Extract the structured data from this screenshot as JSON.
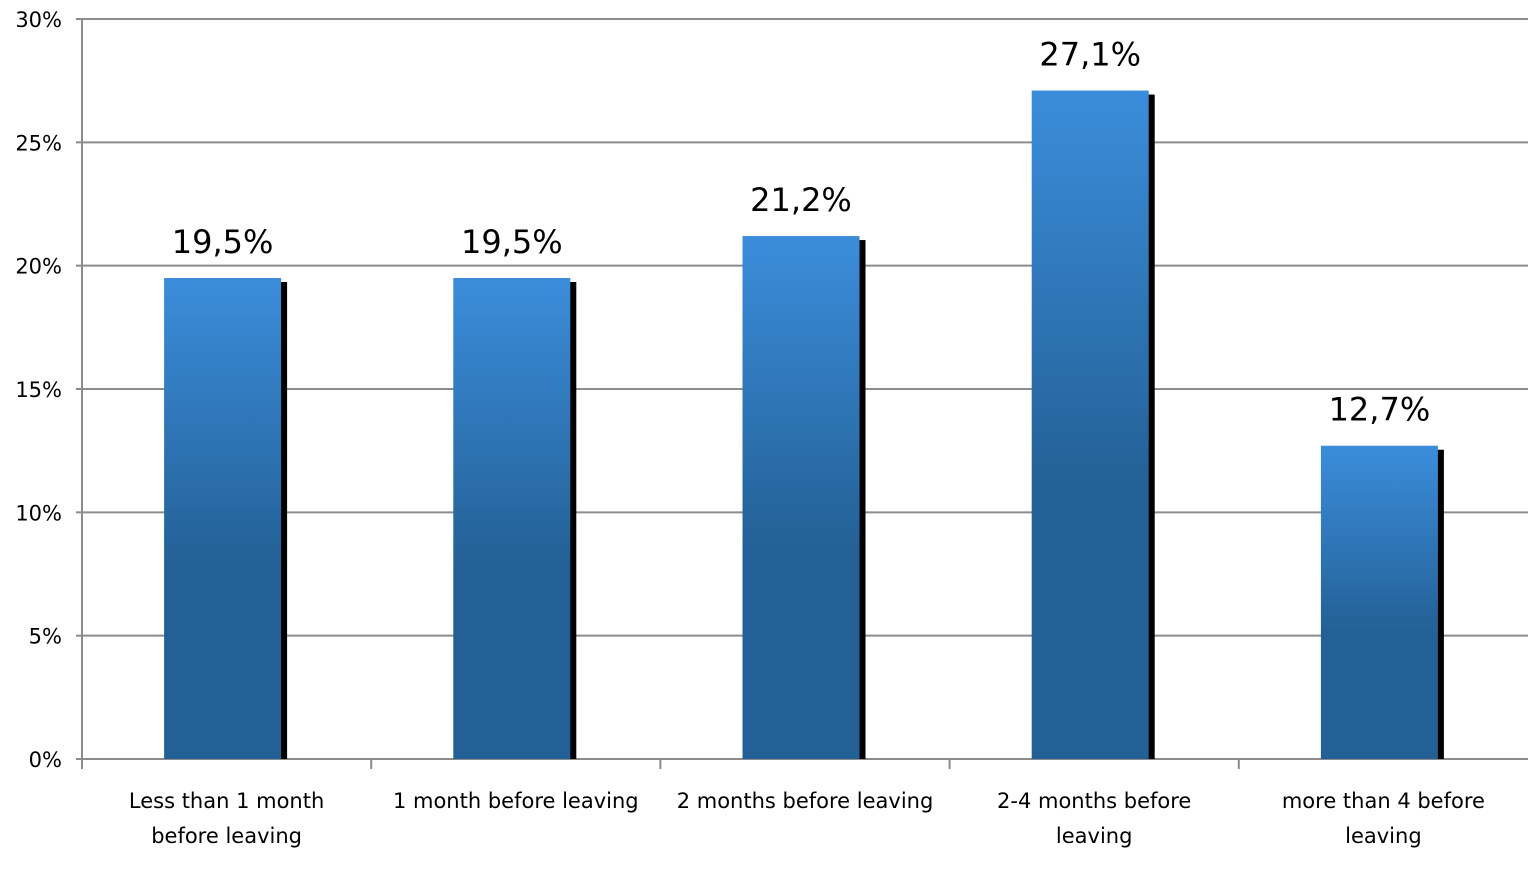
{
  "chart_data": {
    "type": "bar",
    "categories": [
      [
        "Less than 1 month",
        "before leaving"
      ],
      [
        "1 month before leaving"
      ],
      [
        "2 months before leaving"
      ],
      [
        "2-4 months before",
        "leaving"
      ],
      [
        "more than 4 before",
        "leaving"
      ]
    ],
    "values": [
      19.5,
      19.5,
      21.2,
      27.1,
      12.7
    ],
    "data_labels": [
      "19,5%",
      "19,5%",
      "21,2%",
      "27,1%",
      "12,7%"
    ],
    "title": "",
    "xlabel": "",
    "ylabel": "",
    "ylim": [
      0,
      30
    ],
    "yticks": [
      0,
      5,
      10,
      15,
      20,
      25,
      30
    ],
    "ytick_labels": [
      "0%",
      "5%",
      "10%",
      "15%",
      "20%",
      "25%",
      "30%"
    ],
    "grid": "horizontal",
    "legend": "none",
    "colors": {
      "bar_top": "#3b8ddb",
      "bar_bottom": "#236095",
      "bar_shadow": "#000000",
      "grid": "#8c8c8c",
      "axis": "#8c8c8c"
    }
  }
}
